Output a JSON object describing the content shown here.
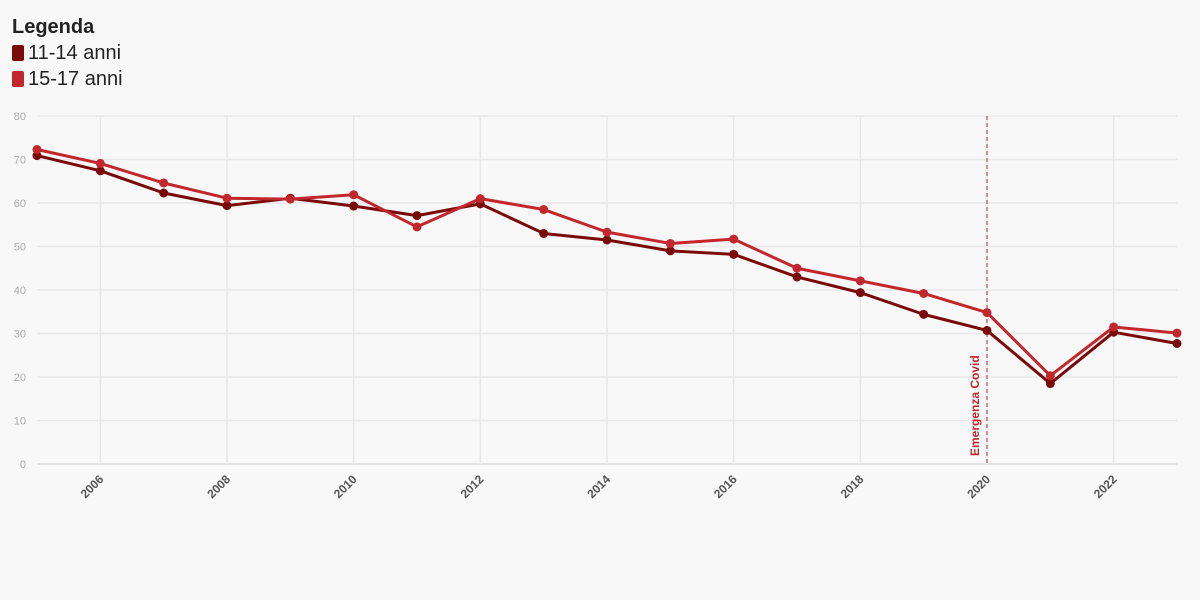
{
  "legend": {
    "title": "Legenda",
    "items": [
      {
        "label": "11-14 anni",
        "color": "#7a0a0a"
      },
      {
        "label": "15-17 anni",
        "color": "#c1272d"
      }
    ]
  },
  "chart_data": {
    "type": "line",
    "title": "",
    "xlabel": "",
    "ylabel": "",
    "xlim": [
      2005,
      2023
    ],
    "ylim": [
      0,
      80
    ],
    "yticks": [
      0,
      10,
      20,
      30,
      40,
      50,
      60,
      70,
      80
    ],
    "xticks": [
      2006,
      2008,
      2010,
      2012,
      2014,
      2016,
      2018,
      2020,
      2022
    ],
    "grid": true,
    "legend_position": "top-left",
    "x": [
      2005,
      2006,
      2007,
      2008,
      2009,
      2010,
      2011,
      2012,
      2013,
      2014,
      2015,
      2016,
      2017,
      2018,
      2019,
      2020,
      2021,
      2022,
      2023
    ],
    "series": [
      {
        "name": "11-14 anni",
        "color": "#7a0a0a",
        "values": [
          70.9,
          67.4,
          62.3,
          59.4,
          61.1,
          59.3,
          57.1,
          59.8,
          53.0,
          51.5,
          49.0,
          48.2,
          43.0,
          39.4,
          34.4,
          30.7,
          18.5,
          30.3,
          27.7
        ]
      },
      {
        "name": "15-17 anni",
        "color": "#c1272d",
        "values": [
          72.3,
          69.1,
          64.6,
          61.1,
          60.9,
          61.9,
          54.5,
          61.0,
          58.5,
          53.3,
          50.7,
          51.7,
          45.0,
          42.1,
          39.2,
          34.8,
          20.3,
          31.5,
          30.1
        ]
      }
    ],
    "annotations": [
      {
        "x": 2020,
        "text": "Emergenza Covid",
        "color": "#c1272d"
      }
    ]
  }
}
